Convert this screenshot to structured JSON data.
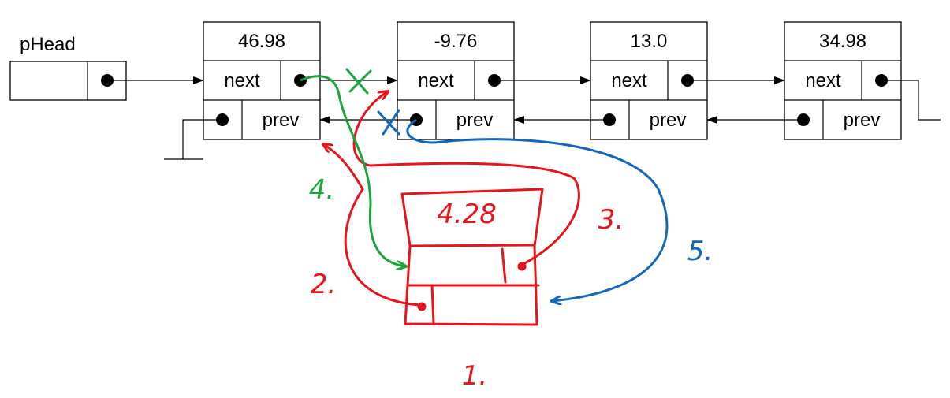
{
  "head_label": "pHead",
  "nodes": [
    {
      "value": "46.98",
      "next_label": "next",
      "prev_label": "prev"
    },
    {
      "value": "-9.76",
      "next_label": "next",
      "prev_label": "prev"
    },
    {
      "value": "13.0",
      "next_label": "next",
      "prev_label": "prev"
    },
    {
      "value": "34.98",
      "next_label": "next",
      "prev_label": "prev"
    }
  ],
  "new_node": {
    "value": "4.28"
  },
  "steps": [
    "1.",
    "2.",
    "3.",
    "4.",
    "5."
  ],
  "colors": {
    "ink": "#000000",
    "red": "#e8141c",
    "green": "#1aa63c",
    "blue": "#1565b8"
  }
}
